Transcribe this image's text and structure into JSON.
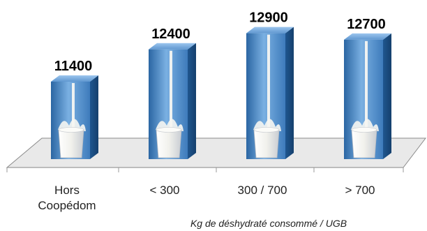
{
  "chart_data": {
    "type": "bar",
    "categories": [
      "Hors Coopédom",
      "< 300",
      "300 / 700",
      "> 700"
    ],
    "category_lines": [
      [
        "Hors",
        "Coopédom"
      ],
      [
        "< 300"
      ],
      [
        "300 / 700"
      ],
      [
        "> 700"
      ]
    ],
    "values": [
      11400,
      12400,
      12900,
      12700
    ],
    "value_labels": [
      "11400",
      "12400",
      "12900",
      "12700"
    ],
    "title": "",
    "xlabel": "Kg de déshydraté consommé / UGB",
    "ylabel": "",
    "ylim": [
      9000,
      13000
    ],
    "grid": false,
    "legend": "none",
    "style": "3d-columns-milk-image",
    "colors": {
      "column_light": "#7ab0e2",
      "column_dark": "#1f568f",
      "milk": "#f6f6f2",
      "floor": "#e9e9e9",
      "floor_edge": "#8a8a8a"
    }
  }
}
